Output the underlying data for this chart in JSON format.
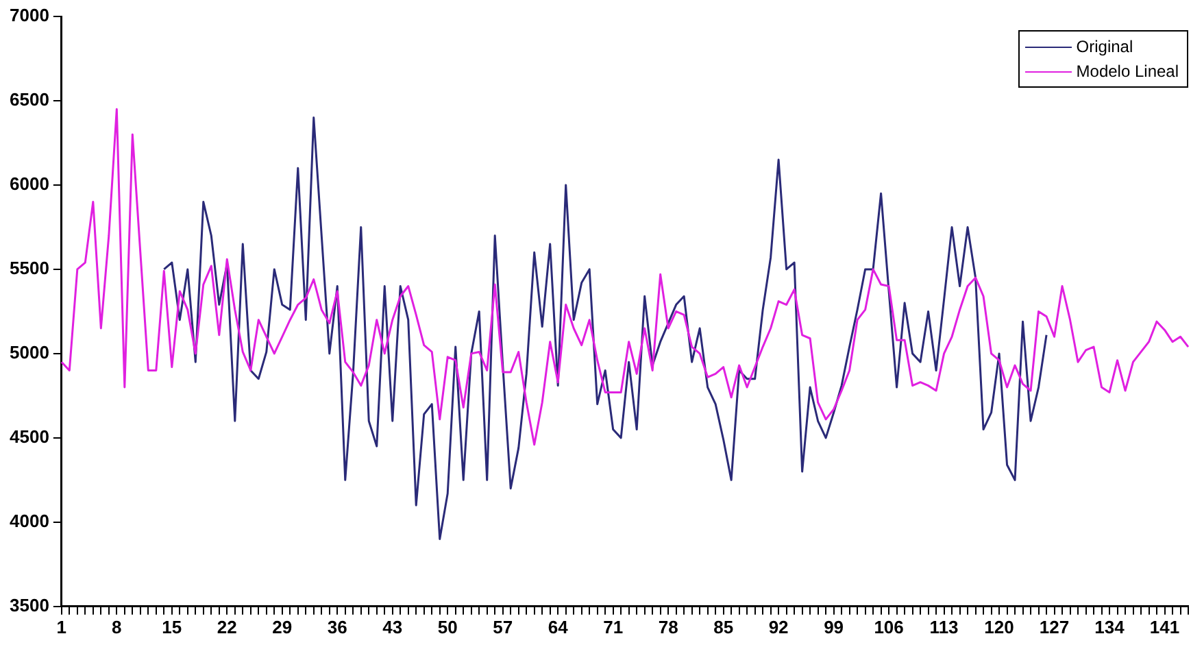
{
  "chart_data": {
    "type": "line",
    "categories": [
      "1",
      null,
      null,
      null,
      null,
      null,
      null,
      "8",
      null,
      null,
      null,
      null,
      null,
      null,
      "15",
      null,
      null,
      null,
      null,
      null,
      null,
      "22",
      null,
      null,
      null,
      null,
      null,
      null,
      "29",
      null,
      null,
      null,
      null,
      null,
      null,
      "36",
      null,
      null,
      null,
      null,
      null,
      null,
      "43",
      null,
      null,
      null,
      null,
      null,
      null,
      "50",
      null,
      null,
      null,
      null,
      null,
      null,
      "57",
      null,
      null,
      null,
      null,
      null,
      null,
      "64",
      null,
      null,
      null,
      null,
      null,
      null,
      "71",
      null,
      null,
      null,
      null,
      null,
      null,
      "78",
      null,
      null,
      null,
      null,
      null,
      null,
      "85",
      null,
      null,
      null,
      null,
      null,
      null,
      "92",
      null,
      null,
      null,
      null,
      null,
      null,
      "99",
      null,
      null,
      null,
      null,
      null,
      null,
      "106",
      null,
      null,
      null,
      null,
      null,
      null,
      "113",
      null,
      null,
      null,
      null,
      null,
      null,
      "120",
      null,
      null,
      null,
      null,
      null,
      null,
      "127",
      null,
      null,
      null,
      null,
      null,
      null,
      "134",
      null,
      null,
      null,
      null,
      null,
      null,
      "141",
      null,
      null,
      null
    ],
    "series": [
      {
        "name": "Original",
        "color": "#2a2a78",
        "values": [
          null,
          null,
          null,
          null,
          null,
          null,
          null,
          null,
          null,
          null,
          null,
          null,
          null,
          5500,
          5540,
          5200,
          5500,
          4950,
          5900,
          5700,
          5290,
          5530,
          4600,
          5650,
          4900,
          4850,
          5010,
          5500,
          5290,
          5260,
          6100,
          5200,
          6400,
          5700,
          5000,
          5400,
          4250,
          4880,
          5750,
          4600,
          4450,
          5400,
          4600,
          5400,
          5200,
          4100,
          4640,
          4700,
          3900,
          4170,
          5040,
          4250,
          5000,
          5250,
          4250,
          5700,
          4930,
          4200,
          4440,
          4880,
          5600,
          5160,
          5650,
          4810,
          6000,
          5200,
          5420,
          5500,
          4700,
          4900,
          4550,
          4500,
          4950,
          4550,
          5340,
          4930,
          5070,
          5180,
          5290,
          5340,
          4950,
          5150,
          4800,
          4700,
          4490,
          4250,
          4900,
          4850,
          4850,
          5260,
          5570,
          6150,
          5500,
          5540,
          4300,
          4800,
          4600,
          4500,
          4650,
          4810,
          5040,
          5260,
          5500,
          5500,
          5950,
          5370,
          4800,
          5300,
          5000,
          4950,
          5250,
          4900,
          5320,
          5750,
          5400,
          5750,
          5450,
          4550,
          4650,
          5000,
          4340,
          4250,
          5190,
          4600,
          4800,
          5110,
          null,
          null,
          null,
          null,
          null,
          null,
          null,
          null,
          null,
          null,
          null,
          null,
          null,
          null,
          null,
          null,
          null,
          null
        ]
      },
      {
        "name": "Modelo Lineal",
        "color": "#e020e0",
        "values": [
          4950,
          4900,
          5500,
          5540,
          5900,
          5150,
          5700,
          6450,
          4800,
          6300,
          5600,
          4900,
          4900,
          5490,
          4920,
          5370,
          5260,
          5000,
          5410,
          5520,
          5110,
          5560,
          5260,
          5010,
          4900,
          5200,
          5100,
          5000,
          5100,
          5200,
          5290,
          5330,
          5440,
          5260,
          5180,
          5370,
          4950,
          4890,
          4810,
          4930,
          5200,
          5000,
          5200,
          5340,
          5400,
          5230,
          5050,
          5010,
          4610,
          4980,
          4960,
          4680,
          5000,
          5010,
          4900,
          5410,
          4890,
          4890,
          5010,
          4710,
          4460,
          4710,
          5070,
          4830,
          5290,
          5150,
          5050,
          5200,
          4960,
          4770,
          4770,
          4770,
          5070,
          4880,
          5150,
          4900,
          5470,
          5150,
          5250,
          5230,
          5040,
          5000,
          4860,
          4880,
          4920,
          4740,
          4930,
          4800,
          4920,
          5040,
          5150,
          5310,
          5290,
          5380,
          5110,
          5090,
          4710,
          4610,
          4670,
          4780,
          4900,
          5200,
          5260,
          5500,
          5410,
          5400,
          5080,
          5080,
          4810,
          4830,
          4810,
          4780,
          5000,
          5100,
          5260,
          5400,
          5450,
          5340,
          5000,
          4960,
          4800,
          4930,
          4820,
          4780,
          5250,
          5220,
          5100,
          5400,
          5200,
          4950,
          5020,
          5040,
          4800,
          4770,
          4960,
          4780,
          4950,
          5010,
          5070,
          5190,
          5140,
          5070,
          5100,
          5040
        ]
      }
    ],
    "ylim": [
      3500,
      7000
    ],
    "yticks": [
      3500,
      4000,
      4500,
      5000,
      5500,
      6000,
      6500,
      7000
    ],
    "grid": false,
    "legend": "top right",
    "marker": "none",
    "line_style": "solid"
  }
}
